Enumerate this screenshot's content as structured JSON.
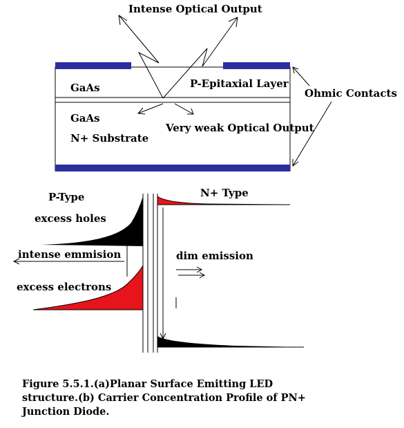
{
  "part_a": {
    "intense_output": "Intense Optical Output",
    "layer_gaas_top": "GaAs",
    "layer_p_epitaxial": "P-Epitaxial Layer",
    "ohmic_contacts": "Ohmic Contacts",
    "layer_gaas_bottom": "GaAs",
    "n_substrate": "N+ Substrate",
    "weak_output": "Very weak Optical Output",
    "colors": {
      "contact": "#2b2f9e",
      "fill": "#ffffff",
      "line": "#000000"
    }
  },
  "part_b": {
    "p_type": "P-Type",
    "n_type": "N+ Type",
    "excess_holes": "excess holes",
    "intense_emission": "intense emmision",
    "dim_emission": "dim emission",
    "excess_electrons": "excess electrons",
    "colors": {
      "holes": "#000000",
      "electrons": "#e8141c"
    }
  },
  "caption": "Figure 5.5.1.(a)Planar Surface Emitting LED structure.(b) Carrier Concentration Profile of PN+ Junction Diode."
}
